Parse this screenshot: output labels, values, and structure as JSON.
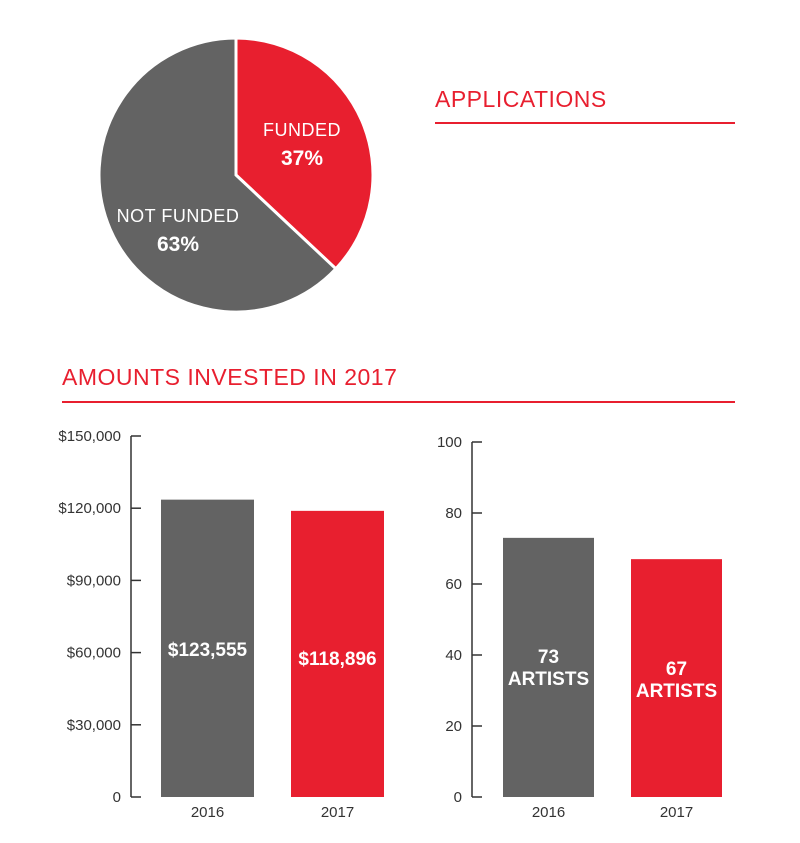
{
  "headings": {
    "applications": "APPLICATIONS",
    "amounts": "AMOUNTS INVESTED IN 2017"
  },
  "colors": {
    "accent": "#e81f2f",
    "gray": "#636363",
    "axis": "#333333"
  },
  "chart_data": [
    {
      "type": "pie",
      "title": "",
      "slices": [
        {
          "label": "FUNDED",
          "value": 37,
          "display": "37%",
          "color": "#e81f2f"
        },
        {
          "label": "NOT FUNDED",
          "value": 63,
          "display": "63%",
          "color": "#636363"
        }
      ]
    },
    {
      "type": "bar",
      "categories": [
        "2016",
        "2017"
      ],
      "values": [
        123555,
        118896
      ],
      "data_labels": [
        [
          "$123,555"
        ],
        [
          "$118,896"
        ]
      ],
      "colors": [
        "#636363",
        "#e81f2f"
      ],
      "ylim": [
        0,
        150000
      ],
      "yticks": [
        0,
        30000,
        60000,
        90000,
        120000,
        150000
      ],
      "ytick_labels": [
        "0",
        "$30,000",
        "$60,000",
        "$90,000",
        "$120,000",
        "$150,000"
      ],
      "xlabel": "",
      "ylabel": ""
    },
    {
      "type": "bar",
      "categories": [
        "2016",
        "2017"
      ],
      "values": [
        73,
        67
      ],
      "data_labels": [
        [
          "73",
          "ARTISTS"
        ],
        [
          "67",
          "ARTISTS"
        ]
      ],
      "colors": [
        "#636363",
        "#e81f2f"
      ],
      "ylim": [
        0,
        100
      ],
      "yticks": [
        0,
        20,
        40,
        60,
        80,
        100
      ],
      "ytick_labels": [
        "0",
        "20",
        "40",
        "60",
        "80",
        "100"
      ],
      "xlabel": "",
      "ylabel": ""
    }
  ]
}
